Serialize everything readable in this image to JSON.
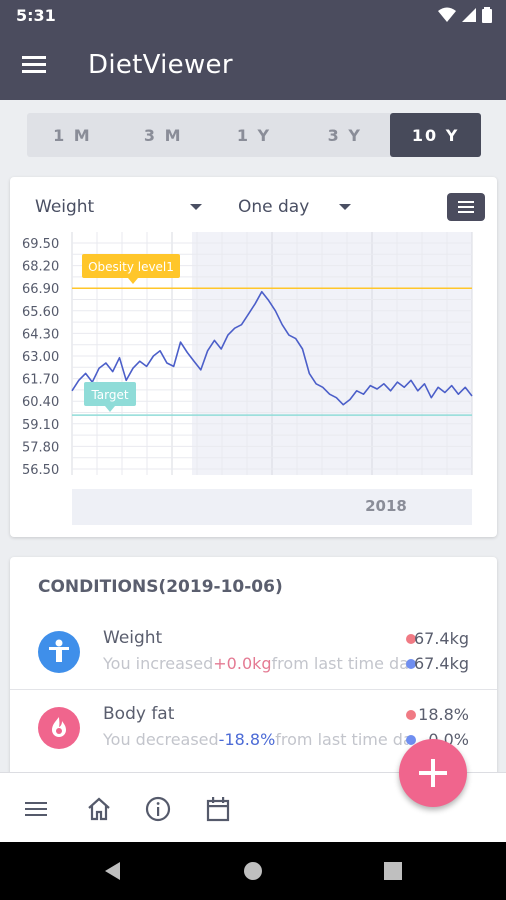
{
  "status": {
    "time": "5:31"
  },
  "app": {
    "title": "DietViewer"
  },
  "range_tabs": [
    {
      "label": "1 M",
      "active": false
    },
    {
      "label": "3 M",
      "active": false
    },
    {
      "label": "1 Y",
      "active": false
    },
    {
      "label": "3 Y",
      "active": false
    },
    {
      "label": "10 Y",
      "active": true
    }
  ],
  "chart": {
    "metric_select": "Weight",
    "period_select": "One day",
    "y_ticks": [
      "69.50",
      "68.20",
      "66.90",
      "65.60",
      "64.30",
      "63.00",
      "61.70",
      "60.40",
      "59.10",
      "57.80",
      "56.50"
    ],
    "x_label": "2018",
    "obesity_label": "Obesity level1",
    "target_label": "Target",
    "colors": {
      "line": "#4c5fc9",
      "obesity": "#ffc62a",
      "target": "#8fdcd8",
      "shade": "#f1f2f8"
    }
  },
  "chart_data": {
    "type": "line",
    "title": "",
    "xlabel": "",
    "ylabel": "",
    "ylim": [
      56.5,
      69.5
    ],
    "x_tick_labels": [
      "2018"
    ],
    "reference_lines": [
      {
        "label": "Obesity level1",
        "value": 66.9
      },
      {
        "label": "Target",
        "value": 59.6
      }
    ],
    "series": [
      {
        "values": [
          61.0,
          61.6,
          62.0,
          61.5,
          62.3,
          62.6,
          62.1,
          62.9,
          61.6,
          62.3,
          62.7,
          62.4,
          63.0,
          63.3,
          62.6,
          62.4,
          63.8,
          63.2,
          62.7,
          62.2,
          63.3,
          63.9,
          63.4,
          64.2,
          64.6,
          64.8,
          65.4,
          66.0,
          66.7,
          66.2,
          65.6,
          64.8,
          64.2,
          64.0,
          63.4,
          62.0,
          61.4,
          61.2,
          60.8,
          60.6,
          60.2,
          60.5,
          61.0,
          60.8,
          61.3,
          61.1,
          61.4,
          61.0,
          61.5,
          61.2,
          61.6,
          61.0,
          61.4,
          60.6,
          61.2,
          60.9,
          61.3,
          60.8,
          61.2,
          60.7
        ]
      }
    ]
  },
  "conditions": {
    "title": "CONDITIONS(2019-10-06)",
    "items": [
      {
        "name": "Weight",
        "sub_prefix": "You increased",
        "sub_delta": "+0.0kg",
        "sub_suffix": "from last time data",
        "value_1": "67.4kg",
        "value_2": "67.4kg",
        "icon": "person-icon",
        "icon_color": "#3f8fea"
      },
      {
        "name": "Body fat",
        "sub_prefix": "You decreased",
        "sub_delta": "-18.8%",
        "sub_suffix": "from last time data",
        "value_1": "18.8%",
        "value_2": "0.0%",
        "icon": "fire-icon",
        "icon_color": "#f0658d"
      }
    ]
  },
  "dot_colors": {
    "current": "#f07a84",
    "previous": "#6f8ef0"
  }
}
